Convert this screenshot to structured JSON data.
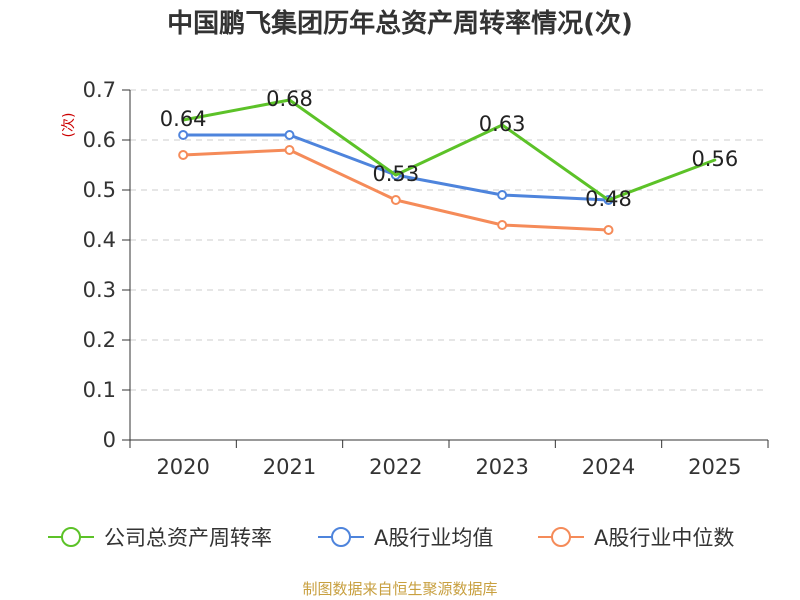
{
  "chart_data": {
    "type": "line",
    "title": "中国鹏飞集团历年总资产周转率情况(次)",
    "ylabel": "(次)",
    "xlabel": "",
    "categories": [
      "2020",
      "2021",
      "2022",
      "2023",
      "2024",
      "2025"
    ],
    "ylim": [
      0,
      0.7
    ],
    "yticks": [
      "0",
      "0.1",
      "0.2",
      "0.3",
      "0.4",
      "0.5",
      "0.6",
      "0.7"
    ],
    "yticks_values": [
      0,
      0.1,
      0.2,
      0.3,
      0.4,
      0.5,
      0.6,
      0.7
    ],
    "grid": true,
    "legend_position": "bottom",
    "series": [
      {
        "name": "公司总资产周转率",
        "color": "#5cc228",
        "values": [
          0.64,
          0.68,
          0.53,
          0.63,
          0.48,
          0.56
        ],
        "labels": [
          "0.64",
          "0.68",
          "0.53",
          "0.63",
          "0.48",
          "0.56"
        ],
        "markers": false
      },
      {
        "name": "A股行业均值",
        "color": "#4e84dc",
        "values": [
          0.61,
          0.61,
          0.53,
          0.49,
          0.48,
          null
        ],
        "markers": true
      },
      {
        "name": "A股行业中位数",
        "color": "#f58b59",
        "values": [
          0.57,
          0.58,
          0.48,
          0.43,
          0.42,
          null
        ],
        "markers": true
      }
    ]
  },
  "source_note": "制图数据来自恒生聚源数据库"
}
